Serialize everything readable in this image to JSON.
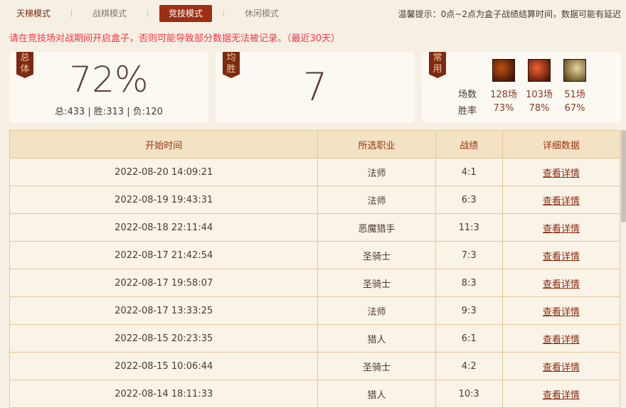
{
  "tabs": [
    {
      "label": "天梯模式"
    },
    {
      "label": "战棋模式"
    },
    {
      "label": "竞技模式",
      "active": true
    },
    {
      "label": "休闲模式"
    }
  ],
  "hint": "温馨提示：0点~2点为盒子战绩结算时间，数据可能有延迟",
  "warning": "请在竞技场对战期间开启盒子，否则可能导致部分数据无法被记录。（最近30天）",
  "overall": {
    "ribbon": "总体",
    "rate": "72%",
    "summary": "总:433 | 胜:313 | 负:120"
  },
  "avg": {
    "ribbon": "均胜",
    "value": "7"
  },
  "common": {
    "ribbon": "常用",
    "games_label": "场数",
    "rate_label": "胜率",
    "heroes": [
      {
        "icon": "hunter-bow-icon",
        "games": "128场",
        "rate": "73%",
        "color": "#7a3a10"
      },
      {
        "icon": "mage-fire-icon",
        "games": "103场",
        "rate": "78%",
        "color": "#b8301a"
      },
      {
        "icon": "paladin-hammer-icon",
        "games": "51场",
        "rate": "67%",
        "color": "#a88a30"
      }
    ]
  },
  "table": {
    "headers": [
      "开始时间",
      "所选职业",
      "战绩",
      "详细数据"
    ],
    "link": "查看详情",
    "rows": [
      [
        "2022-08-20 14:09:21",
        "法师",
        "4:1"
      ],
      [
        "2022-08-19 19:43:31",
        "法师",
        "6:3"
      ],
      [
        "2022-08-18 22:11:44",
        "恶魔猎手",
        "11:3"
      ],
      [
        "2022-08-17 21:42:54",
        "圣骑士",
        "7:3"
      ],
      [
        "2022-08-17 19:58:07",
        "圣骑士",
        "8:3"
      ],
      [
        "2022-08-17 13:33:25",
        "法师",
        "9:3"
      ],
      [
        "2022-08-15 20:23:35",
        "猎人",
        "6:1"
      ],
      [
        "2022-08-15 10:06:44",
        "圣骑士",
        "4:2"
      ],
      [
        "2022-08-14 18:11:33",
        "猎人",
        "10:3"
      ]
    ]
  }
}
